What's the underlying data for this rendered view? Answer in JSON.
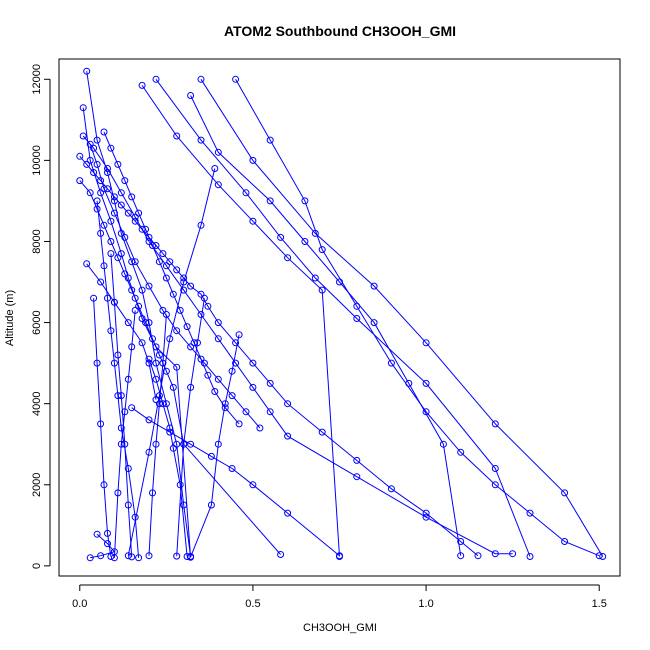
{
  "chart_data": {
    "type": "line",
    "title": "ATOM2 Southbound CH3OOH_GMI",
    "xlabel": "CH3OOH_GMI",
    "ylabel": "Altitude (m)",
    "xlim": [
      -0.06,
      1.56
    ],
    "ylim": [
      -250,
      12500
    ],
    "x_ticks": [
      0.0,
      0.5,
      1.0,
      1.5
    ],
    "x_tick_labels": [
      "0.0",
      "0.5",
      "1.0",
      "1.5"
    ],
    "y_ticks": [
      0,
      2000,
      4000,
      6000,
      8000,
      10000,
      12000
    ],
    "y_tick_labels": [
      "0",
      "2000",
      "4000",
      "6000",
      "8000",
      "10000",
      "12000"
    ],
    "grid": false,
    "legend": "none",
    "colors": {
      "series": "#0000ff",
      "axis": "#000000",
      "background": "#ffffff"
    },
    "marker": "open-circle",
    "series": [
      {
        "x": [
          0.02,
          0.05,
          0.08,
          0.1,
          0.12,
          0.15,
          0.18,
          0.2,
          0.22,
          0.25,
          0.28,
          0.3,
          0.32
        ],
        "y": [
          12200,
          10500,
          9700,
          9000,
          8200,
          7500,
          6800,
          6000,
          5000,
          4000,
          3000,
          1500,
          230
        ]
      },
      {
        "x": [
          0.01,
          0.03,
          0.06,
          0.09,
          0.12,
          0.14,
          0.16,
          0.18,
          0.22,
          0.28,
          0.32
        ],
        "y": [
          11300,
          10000,
          9200,
          8500,
          7700,
          7100,
          6600,
          6100,
          5400,
          4900,
          210
        ]
      },
      {
        "x": [
          0.01,
          0.04,
          0.08,
          0.12,
          0.16,
          0.2,
          0.25,
          0.3,
          0.35,
          0.4,
          0.45,
          0.5,
          0.55,
          0.6,
          0.8,
          1.0,
          1.2,
          1.25
        ],
        "y": [
          10600,
          10300,
          9800,
          9200,
          8600,
          8000,
          7400,
          6800,
          6200,
          5600,
          5000,
          4400,
          3800,
          3200,
          2200,
          1200,
          300,
          300
        ]
      },
      {
        "x": [
          0.45,
          0.55,
          0.65,
          0.7,
          0.8,
          0.9,
          1.0,
          1.1,
          1.2,
          1.3,
          1.4,
          1.5
        ],
        "y": [
          12000,
          10500,
          9000,
          7800,
          6400,
          5000,
          3800,
          2800,
          2000,
          1300,
          600,
          250
        ]
      },
      {
        "x": [
          0.35,
          0.5,
          0.68,
          0.85,
          1.0,
          1.2,
          1.4,
          1.51
        ],
        "y": [
          12000,
          10000,
          8200,
          6900,
          5500,
          3500,
          1800,
          230
        ]
      },
      {
        "x": [
          0.22,
          0.35,
          0.48,
          0.58,
          0.68,
          0.8,
          1.0,
          1.2,
          1.3
        ],
        "y": [
          12000,
          10500,
          9200,
          8100,
          7100,
          6100,
          4500,
          2400,
          230
        ]
      },
      {
        "x": [
          0.18,
          0.28,
          0.4,
          0.5,
          0.6,
          0.7,
          0.75
        ],
        "y": [
          11850,
          10600,
          9400,
          8500,
          7600,
          6800,
          230
        ]
      },
      {
        "x": [
          0.32,
          0.4,
          0.55,
          0.65,
          0.75,
          0.85,
          0.95,
          1.05,
          1.1
        ],
        "y": [
          11600,
          10200,
          9000,
          8000,
          7000,
          6000,
          4500,
          3000,
          250
        ]
      },
      {
        "x": [
          0.03,
          0.05,
          0.07,
          0.1,
          0.13,
          0.16,
          0.2,
          0.24,
          0.28,
          0.32,
          0.36,
          0.4,
          0.44,
          0.48,
          0.52
        ],
        "y": [
          10400,
          9900,
          9300,
          8700,
          8100,
          7500,
          6900,
          6300,
          5800,
          5400,
          5000,
          4600,
          4200,
          3800,
          3400
        ]
      },
      {
        "x": [
          0.0,
          0.03,
          0.05,
          0.07,
          0.09,
          0.11,
          0.13,
          0.15,
          0.17,
          0.19,
          0.21,
          0.23,
          0.25,
          0.27,
          0.3,
          0.58
        ],
        "y": [
          9500,
          9200,
          8800,
          8400,
          8000,
          7600,
          7200,
          6800,
          6400,
          6000,
          5600,
          5200,
          4800,
          4400,
          3000,
          280
        ]
      },
      {
        "x": [
          0.07,
          0.09,
          0.11,
          0.13,
          0.15,
          0.17,
          0.19,
          0.21,
          0.23,
          0.25,
          0.27,
          0.29,
          0.31,
          0.33,
          0.35,
          0.37,
          0.39,
          0.42,
          0.46
        ],
        "y": [
          10700,
          10300,
          9900,
          9500,
          9100,
          8700,
          8300,
          7900,
          7500,
          7100,
          6700,
          6300,
          5900,
          5500,
          5100,
          4700,
          4300,
          3900,
          3500
        ]
      },
      {
        "x": [
          0.0,
          0.02,
          0.04,
          0.06,
          0.08,
          0.1,
          0.12,
          0.14,
          0.16,
          0.18,
          0.2,
          0.22,
          0.24,
          0.26,
          0.28,
          0.3,
          0.32,
          0.35,
          0.37,
          0.4,
          0.45,
          0.5,
          0.55,
          0.6,
          0.7,
          0.8,
          0.9,
          1.0,
          1.1,
          1.15
        ],
        "y": [
          10100,
          9900,
          9700,
          9500,
          9300,
          9100,
          8900,
          8700,
          8500,
          8300,
          8100,
          7900,
          7700,
          7500,
          7300,
          7100,
          6900,
          6700,
          6400,
          6000,
          5500,
          5000,
          4500,
          4000,
          3300,
          2600,
          1900,
          1300,
          600,
          250
        ]
      },
      {
        "x": [
          0.02,
          0.06,
          0.1,
          0.14,
          0.18,
          0.2,
          0.22
        ],
        "y": [
          7450,
          7000,
          6500,
          6000,
          5500,
          5000,
          4100
        ]
      },
      {
        "x": [
          0.04,
          0.05,
          0.06,
          0.07,
          0.08,
          0.09
        ],
        "y": [
          6600,
          5000,
          3500,
          2000,
          800,
          230
        ]
      },
      {
        "x": [
          0.09,
          0.1,
          0.11,
          0.12,
          0.13,
          0.14,
          0.15
        ],
        "y": [
          7700,
          6500,
          5200,
          4200,
          3000,
          1500,
          220
        ]
      },
      {
        "x": [
          0.16,
          0.15,
          0.14,
          0.13,
          0.12,
          0.11,
          0.1
        ],
        "y": [
          6300,
          5400,
          4600,
          3800,
          3000,
          1800,
          200
        ]
      },
      {
        "x": [
          0.25,
          0.24,
          0.23,
          0.22,
          0.21,
          0.2
        ],
        "y": [
          6200,
          5000,
          4000,
          3000,
          1800,
          250
        ]
      },
      {
        "x": [
          0.36,
          0.34,
          0.32,
          0.3,
          0.28
        ],
        "y": [
          6600,
          5500,
          4400,
          3000,
          240
        ]
      },
      {
        "x": [
          0.46,
          0.44,
          0.42,
          0.4,
          0.38,
          0.32
        ],
        "y": [
          5700,
          4800,
          4000,
          3000,
          1500,
          220
        ]
      },
      {
        "x": [
          0.39,
          0.35,
          0.3,
          0.26,
          0.23,
          0.2,
          0.14
        ],
        "y": [
          9800,
          8400,
          7000,
          5600,
          4200,
          2800,
          250
        ]
      },
      {
        "x": [
          0.05,
          0.06,
          0.07,
          0.08,
          0.09,
          0.1,
          0.11,
          0.12,
          0.14,
          0.16,
          0.17
        ],
        "y": [
          9000,
          8200,
          7400,
          6600,
          5800,
          5000,
          4200,
          3400,
          2400,
          1200,
          200
        ]
      },
      {
        "x": [
          0.2,
          0.22,
          0.24,
          0.26,
          0.27,
          0.29,
          0.31
        ],
        "y": [
          5100,
          4600,
          4000,
          3400,
          2900,
          2000,
          230
        ]
      },
      {
        "x": [
          0.15,
          0.2,
          0.26,
          0.32,
          0.38,
          0.44,
          0.5,
          0.6,
          0.75
        ],
        "y": [
          3900,
          3600,
          3300,
          3000,
          2700,
          2400,
          2000,
          1300,
          250
        ]
      },
      {
        "x": [
          0.05,
          0.08,
          0.1,
          0.06,
          0.03
        ],
        "y": [
          780,
          550,
          350,
          250,
          200
        ]
      }
    ]
  }
}
